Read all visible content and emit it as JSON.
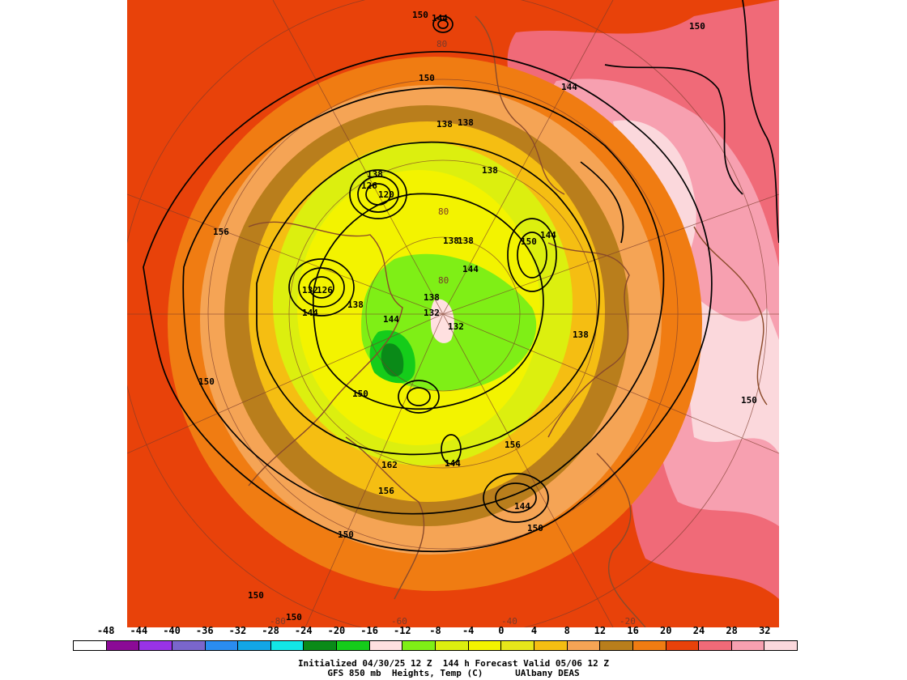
{
  "map": {
    "contour_labels": [
      "150",
      "144",
      "150",
      "150",
      "144",
      "138",
      "138",
      "138",
      "138",
      "126",
      "120",
      "156",
      "138",
      "138",
      "144",
      "138",
      "132",
      "126",
      "138",
      "144",
      "132",
      "132",
      "150",
      "144",
      "138",
      "144",
      "150",
      "150",
      "156",
      "144",
      "162",
      "156",
      "144",
      "150",
      "150",
      "150",
      "150",
      "150"
    ],
    "grid_labels": [
      "80",
      "80",
      "80",
      "-80",
      "-60",
      "-40",
      "-20"
    ],
    "colors": {
      "background": "#e8420a",
      "orange": "#f07c12",
      "light_orange": "#f5a455",
      "brown": "#b97e1c",
      "yellow_orange": "#f5be12",
      "yellow": "#f3f300",
      "lime_yellow": "#dcef0f",
      "green": "#7fef16",
      "bright_green": "#15cc1a",
      "dark_green": "#0a8a18",
      "pink": "#f7a0b0",
      "salmon": "#f06a78",
      "pale_pink": "#fbd8dc",
      "coast": "#8a4a2a"
    }
  },
  "scale": {
    "labels": [
      "-48",
      "-44",
      "-40",
      "-36",
      "-32",
      "-28",
      "-24",
      "-20",
      "-16",
      "-12",
      "-8",
      "-4",
      "0",
      "4",
      "8",
      "12",
      "16",
      "20",
      "24",
      "28",
      "32"
    ],
    "colors": [
      "#ffffff",
      "#8b0a96",
      "#9933e6",
      "#7a66cc",
      "#2a8cf0",
      "#12a6e6",
      "#12e6e6",
      "#0a8a18",
      "#15cc1a",
      "#ffe0e0",
      "#7fef16",
      "#dcef0f",
      "#f3f300",
      "#e6e61a",
      "#f5be12",
      "#f5a455",
      "#b97e1c",
      "#f07c12",
      "#e8420a",
      "#f06a78",
      "#f7a0b0",
      "#fbd8dc"
    ]
  },
  "footer": {
    "line1": "Initialized 04/30/25 12 Z  144 h Forecast Valid 05/06 12 Z",
    "line2": "GFS 850 mb  Heights, Temp (C)      UAlbany DEAS"
  }
}
